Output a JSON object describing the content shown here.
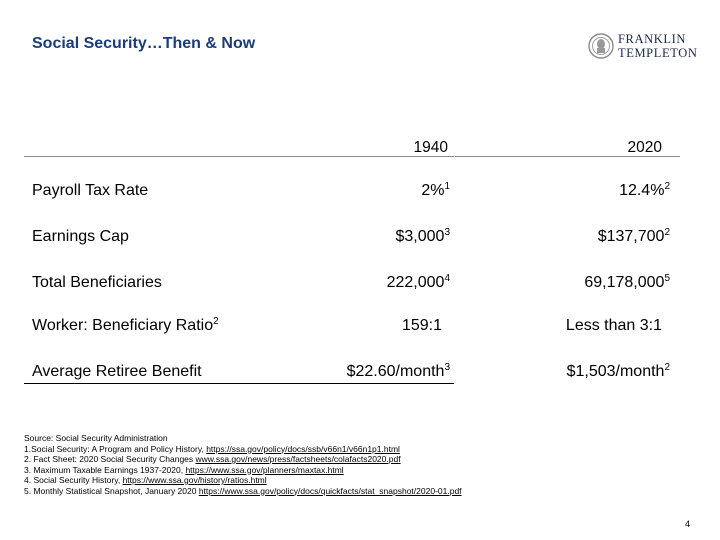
{
  "title": "Social Security…Then & Now",
  "logo": {
    "line1": "FRANKLIN",
    "line2": "TEMPLETON"
  },
  "columns": [
    "1940",
    "2020"
  ],
  "rows": [
    {
      "label": "Payroll Tax Rate",
      "label_sup": "",
      "v1940": "2%",
      "s1940": "1",
      "v2020": "12.4%",
      "s2020": "2"
    },
    {
      "label": "Earnings Cap",
      "label_sup": "",
      "v1940": "$3,000",
      "s1940": "3",
      "v2020": "$137,700",
      "s2020": "2"
    },
    {
      "label": "Total Beneficiaries",
      "label_sup": "",
      "v1940": "222,000",
      "s1940": "4",
      "v2020": "69,178,000",
      "s2020": "5"
    },
    {
      "label": "Worker: Beneficiary Ratio",
      "label_sup": "2",
      "v1940": "159:1",
      "s1940": "",
      "v2020": "Less than 3:1",
      "s2020": ""
    },
    {
      "label": "Average Retiree Benefit",
      "label_sup": "",
      "v1940": "$22.60/month",
      "s1940": "3",
      "v2020": "$1,503/month",
      "s2020": "2"
    }
  ],
  "footnotes": {
    "source": "Source: Social Security Administration",
    "n1_text": "1.Social Security: A Program and Policy History, ",
    "n1_link": "https://ssa.gov/policy/docs/ssb/v66n1/v66n1p1.html",
    "n2_text": "2. Fact Sheet: 2020 Social Security Changes ",
    "n2_link": "www.ssa.gov/news/press/factsheets/colafacts2020.pdf",
    "n3_text": "3. Maximum Taxable Earnings 1937-2020, ",
    "n3_link": "https://www.ssa.gov/planners/maxtax.html",
    "n4_text": "4. Social Security History, ",
    "n4_link": "https://www.ssa.gov/history/ratios.html",
    "n5_text": "5. Monthly Statistical Snapshot, January 2020 ",
    "n5_link": "https://www.ssa.gov/policy/docs/quickfacts/stat_snapshot/2020-01.pdf"
  },
  "page_number": "4"
}
